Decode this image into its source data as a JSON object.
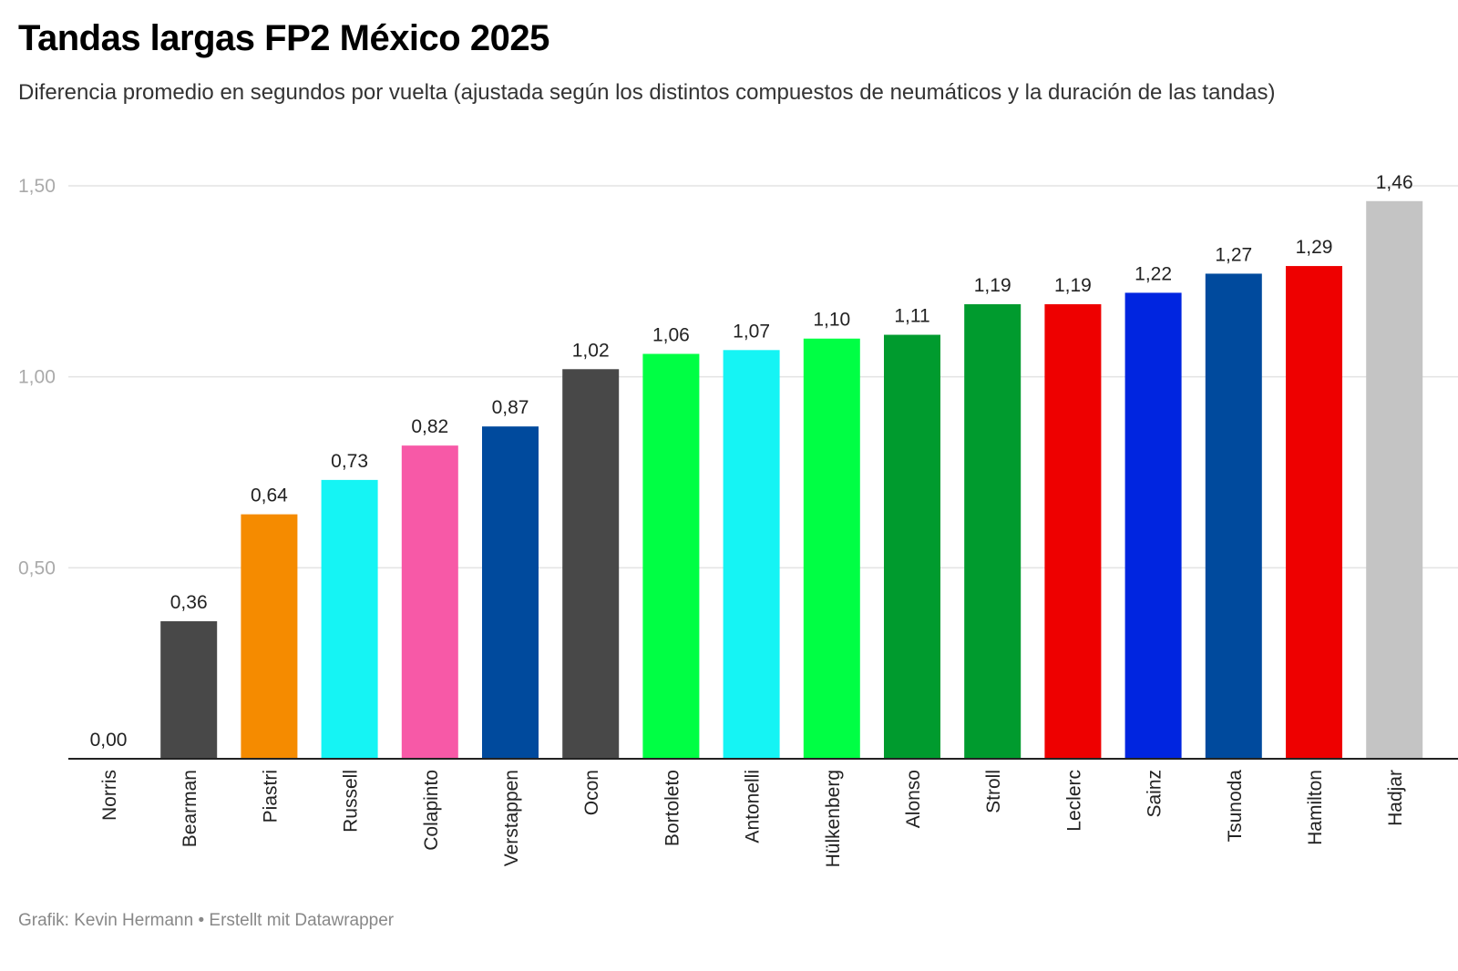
{
  "header": {
    "title": "Tandas largas FP2 México 2025",
    "subtitle": "Diferencia promedio en segundos por vuelta (ajustada según los distintos compuestos de neumáticos y la duración de las tandas)"
  },
  "footer": {
    "credit": "Grafik: Kevin Hermann • Erstellt mit Datawrapper"
  },
  "chart_data": {
    "type": "bar",
    "title": "Tandas largas FP2 México 2025",
    "subtitle": "Diferencia promedio en segundos por vuelta (ajustada según los distintos compuestos de neumáticos y la duración de las tandas)",
    "xlabel": "",
    "ylabel": "",
    "ylim": [
      0,
      1.5
    ],
    "yticks": [
      0.5,
      1.0,
      1.5
    ],
    "ytick_labels": [
      "0,50",
      "1,00",
      "1,50"
    ],
    "grid": true,
    "legend": "none",
    "categories": [
      "Norris",
      "Bearman",
      "Piastri",
      "Russell",
      "Colapinto",
      "Verstappen",
      "Ocon",
      "Bortoleto",
      "Antonelli",
      "Hülkenberg",
      "Alonso",
      "Stroll",
      "Leclerc",
      "Sainz",
      "Tsunoda",
      "Hamilton",
      "Hadjar"
    ],
    "values": [
      0.0,
      0.36,
      0.64,
      0.73,
      0.82,
      0.87,
      1.02,
      1.06,
      1.07,
      1.1,
      1.11,
      1.19,
      1.19,
      1.22,
      1.27,
      1.29,
      1.46
    ],
    "value_labels": [
      "0,00",
      "0,36",
      "0,64",
      "0,73",
      "0,82",
      "0,87",
      "1,02",
      "1,06",
      "1,07",
      "1,10",
      "1,11",
      "1,19",
      "1,19",
      "1,22",
      "1,27",
      "1,29",
      "1,46"
    ],
    "colors": [
      "#ff8700",
      "#484848",
      "#f58b00",
      "#15f4f4",
      "#f759a7",
      "#004a9d",
      "#484848",
      "#00ff44",
      "#15f4f4",
      "#00ff44",
      "#009b2e",
      "#009b2e",
      "#ee0000",
      "#0025e0",
      "#004a9d",
      "#ee0000",
      "#c4c4c4"
    ]
  }
}
